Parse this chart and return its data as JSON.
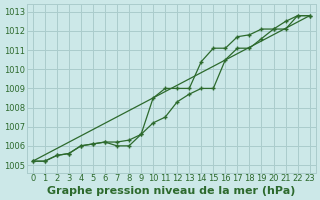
{
  "xlabel": "Graphe pression niveau de la mer (hPa)",
  "xlim": [
    -0.5,
    23.5
  ],
  "ylim": [
    1004.6,
    1013.4
  ],
  "yticks": [
    1005,
    1006,
    1007,
    1008,
    1009,
    1010,
    1011,
    1012,
    1013
  ],
  "xticks": [
    0,
    1,
    2,
    3,
    4,
    5,
    6,
    7,
    8,
    9,
    10,
    11,
    12,
    13,
    14,
    15,
    16,
    17,
    18,
    19,
    20,
    21,
    22,
    23
  ],
  "background_color": "#cce8e8",
  "grid_color": "#aacccc",
  "line_color": "#2d6a2d",
  "series1_x": [
    0,
    1,
    2,
    3,
    4,
    5,
    6,
    7,
    8,
    9,
    10,
    11,
    12,
    13,
    14,
    15,
    16,
    17,
    18,
    19,
    20,
    21,
    22,
    23
  ],
  "series1_y": [
    1005.2,
    1005.2,
    1005.5,
    1005.6,
    1006.0,
    1006.1,
    1006.2,
    1006.2,
    1006.3,
    1006.6,
    1007.2,
    1007.5,
    1008.3,
    1008.7,
    1009.0,
    1009.0,
    1010.5,
    1011.1,
    1011.1,
    1011.6,
    1012.1,
    1012.1,
    1012.8,
    1012.8
  ],
  "series2_x": [
    0,
    1,
    2,
    3,
    4,
    5,
    6,
    7,
    8,
    9,
    10,
    11,
    12,
    13,
    14,
    15,
    16,
    17,
    18,
    19,
    20,
    21,
    22,
    23
  ],
  "series2_y": [
    1005.2,
    1005.2,
    1005.5,
    1005.6,
    1006.0,
    1006.1,
    1006.2,
    1006.0,
    1006.0,
    1006.6,
    1008.5,
    1009.0,
    1009.0,
    1009.0,
    1010.4,
    1011.1,
    1011.1,
    1011.7,
    1011.8,
    1012.1,
    1012.1,
    1012.5,
    1012.8,
    1012.8
  ],
  "series3_x": [
    0,
    23
  ],
  "series3_y": [
    1005.2,
    1012.8
  ],
  "font_color": "#2d6a2d",
  "tick_fontsize": 6,
  "xlabel_fontsize": 8
}
